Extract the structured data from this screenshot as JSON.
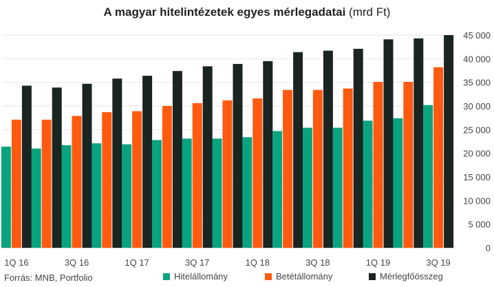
{
  "title_bold": "A magyar hitelintézetek egyes mérlegadatai",
  "title_rest": " (mrd Ft)",
  "source": "Forrás: MNB, Portfolio",
  "chart_data": {
    "type": "bar",
    "title": "A magyar hitelintézetek egyes mérlegadatai (mrd Ft)",
    "categories": [
      "1Q 16",
      "2Q 16",
      "3Q 16",
      "4Q 16",
      "1Q 17",
      "2Q 17",
      "3Q 17",
      "4Q 17",
      "1Q 18",
      "2Q 18",
      "3Q 18",
      "4Q 18",
      "1Q 19",
      "2Q 19",
      "3Q 19"
    ],
    "shown_category_labels": [
      "1Q 16",
      "3Q 16",
      "1Q 17",
      "3Q 17",
      "1Q 18",
      "3Q 18",
      "1Q 19",
      "3Q 19"
    ],
    "ylim": [
      0,
      45000
    ],
    "yticks": [
      0,
      5000,
      10000,
      15000,
      20000,
      25000,
      30000,
      35000,
      40000,
      45000
    ],
    "ytick_labels": [
      "0",
      "5 000",
      "10 000",
      "15 000",
      "20 000",
      "25 000",
      "30 000",
      "35 000",
      "40 000",
      "45 000"
    ],
    "y_axis_side": "right",
    "grid": true,
    "legend_position": "bottom",
    "series": [
      {
        "name": "Hitelállomány",
        "color": "#0aa37f",
        "values": [
          21400,
          21000,
          21700,
          22100,
          21900,
          22800,
          23100,
          23100,
          23400,
          24700,
          25400,
          25400,
          26900,
          27400,
          30200
        ]
      },
      {
        "name": "Betétállomány",
        "color": "#ff5a10",
        "values": [
          27100,
          27100,
          27900,
          28700,
          28900,
          30000,
          30600,
          31200,
          31600,
          33400,
          33400,
          33700,
          35100,
          35100,
          38200
        ]
      },
      {
        "name": "Mérlegfőösszeg",
        "color": "#1a2421",
        "values": [
          34300,
          33900,
          34700,
          35800,
          36400,
          37400,
          38400,
          38900,
          39500,
          41400,
          41700,
          42100,
          44100,
          44300,
          45000
        ]
      }
    ]
  }
}
